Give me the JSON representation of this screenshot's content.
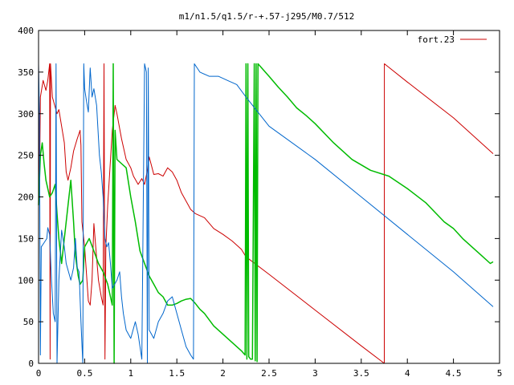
{
  "chart_data": {
    "type": "line",
    "title": "m1/n1.5/q1.5/r-+.57-j295/M0.7/512",
    "xlabel": "",
    "ylabel": "",
    "xlim": [
      0,
      5
    ],
    "ylim": [
      0,
      400
    ],
    "grid": false,
    "legend_position": "top-right",
    "xticks": [
      0,
      0.5,
      1,
      1.5,
      2,
      2.5,
      3,
      3.5,
      4,
      4.5,
      5
    ],
    "xtick_labels": [
      "0",
      "0.5",
      "1",
      "1.5",
      "2",
      "2.5",
      "3",
      "3.5",
      "4",
      "4.5",
      "5"
    ],
    "yticks": [
      0,
      50,
      100,
      150,
      200,
      250,
      300,
      350,
      400
    ],
    "ytick_labels": [
      "0",
      "50",
      "100",
      "150",
      "200",
      "250",
      "300",
      "350",
      "400"
    ],
    "series": [
      {
        "name": "fort.23",
        "color": "#cc0000",
        "show_in_legend": true,
        "points": [
          [
            0,
            358
          ],
          [
            0.01,
            200
          ],
          [
            0.02,
            320
          ],
          [
            0.05,
            340
          ],
          [
            0.08,
            328
          ],
          [
            0.1,
            340
          ],
          [
            0.12,
            360
          ],
          [
            0.125,
            5
          ],
          [
            0.13,
            360
          ],
          [
            0.15,
            320
          ],
          [
            0.2,
            300
          ],
          [
            0.22,
            305
          ],
          [
            0.25,
            285
          ],
          [
            0.28,
            265
          ],
          [
            0.3,
            230
          ],
          [
            0.32,
            220
          ],
          [
            0.35,
            235
          ],
          [
            0.38,
            255
          ],
          [
            0.42,
            270
          ],
          [
            0.45,
            280
          ],
          [
            0.46,
            262
          ],
          [
            0.47,
            170
          ],
          [
            0.5,
            140
          ],
          [
            0.54,
            75
          ],
          [
            0.56,
            70
          ],
          [
            0.58,
            100
          ],
          [
            0.6,
            168
          ],
          [
            0.62,
            140
          ],
          [
            0.65,
            100
          ],
          [
            0.68,
            80
          ],
          [
            0.7,
            70
          ],
          [
            0.71,
            360
          ],
          [
            0.72,
            5
          ],
          [
            0.73,
            140
          ],
          [
            0.75,
            190
          ],
          [
            0.8,
            280
          ],
          [
            0.83,
            310
          ],
          [
            0.85,
            300
          ],
          [
            0.9,
            270
          ],
          [
            0.95,
            245
          ],
          [
            1.0,
            235
          ],
          [
            1.03,
            225
          ],
          [
            1.08,
            215
          ],
          [
            1.12,
            222
          ],
          [
            1.15,
            215
          ],
          [
            1.18,
            232
          ],
          [
            1.2,
            248
          ],
          [
            1.25,
            227
          ],
          [
            1.3,
            228
          ],
          [
            1.35,
            225
          ],
          [
            1.4,
            235
          ],
          [
            1.45,
            230
          ],
          [
            1.5,
            220
          ],
          [
            1.55,
            205
          ],
          [
            1.6,
            195
          ],
          [
            1.65,
            185
          ],
          [
            1.7,
            180
          ],
          [
            1.8,
            175
          ],
          [
            1.9,
            162
          ],
          [
            2.0,
            155
          ],
          [
            2.1,
            147
          ],
          [
            2.2,
            137
          ],
          [
            2.25,
            128
          ],
          [
            2.5,
            107
          ],
          [
            3.0,
            64
          ],
          [
            3.5,
            21
          ],
          [
            3.75,
            0
          ],
          [
            3.751,
            360
          ],
          [
            4.0,
            338
          ],
          [
            4.5,
            295
          ],
          [
            4.93,
            252
          ]
        ]
      },
      {
        "name": "",
        "color": "#00bb00",
        "show_in_legend": false,
        "points": [
          [
            0,
            190
          ],
          [
            0.02,
            250
          ],
          [
            0.04,
            265
          ],
          [
            0.06,
            240
          ],
          [
            0.08,
            220
          ],
          [
            0.12,
            200
          ],
          [
            0.15,
            205
          ],
          [
            0.18,
            215
          ],
          [
            0.2,
            180
          ],
          [
            0.22,
            150
          ],
          [
            0.25,
            120
          ],
          [
            0.28,
            150
          ],
          [
            0.32,
            190
          ],
          [
            0.35,
            220
          ],
          [
            0.38,
            170
          ],
          [
            0.4,
            130
          ],
          [
            0.43,
            105
          ],
          [
            0.45,
            95
          ],
          [
            0.48,
            100
          ],
          [
            0.5,
            140
          ],
          [
            0.55,
            150
          ],
          [
            0.6,
            135
          ],
          [
            0.65,
            120
          ],
          [
            0.7,
            110
          ],
          [
            0.75,
            95
          ],
          [
            0.8,
            70
          ],
          [
            0.81,
            360
          ],
          [
            0.82,
            0
          ],
          [
            0.83,
            280
          ],
          [
            0.85,
            245
          ],
          [
            0.9,
            240
          ],
          [
            0.95,
            235
          ],
          [
            1.0,
            200
          ],
          [
            1.05,
            170
          ],
          [
            1.1,
            135
          ],
          [
            1.15,
            120
          ],
          [
            1.2,
            105
          ],
          [
            1.25,
            95
          ],
          [
            1.3,
            85
          ],
          [
            1.35,
            80
          ],
          [
            1.4,
            70
          ],
          [
            1.45,
            70
          ],
          [
            1.5,
            72
          ],
          [
            1.55,
            75
          ],
          [
            1.6,
            77
          ],
          [
            1.65,
            78
          ],
          [
            1.7,
            72
          ],
          [
            1.75,
            65
          ],
          [
            1.8,
            60
          ],
          [
            1.9,
            45
          ],
          [
            2.0,
            35
          ],
          [
            2.1,
            25
          ],
          [
            2.2,
            15
          ],
          [
            2.24,
            10
          ],
          [
            2.25,
            360
          ],
          [
            2.26,
            5
          ],
          [
            2.27,
            360
          ],
          [
            2.28,
            8
          ],
          [
            2.3,
            5
          ],
          [
            2.32,
            5
          ],
          [
            2.34,
            360
          ],
          [
            2.35,
            3
          ],
          [
            2.36,
            360
          ],
          [
            2.37,
            2
          ],
          [
            2.38,
            360
          ],
          [
            2.5,
            345
          ],
          [
            2.6,
            332
          ],
          [
            2.7,
            320
          ],
          [
            2.8,
            307
          ],
          [
            2.9,
            298
          ],
          [
            3.0,
            288
          ],
          [
            3.2,
            265
          ],
          [
            3.4,
            245
          ],
          [
            3.6,
            232
          ],
          [
            3.8,
            225
          ],
          [
            4.0,
            210
          ],
          [
            4.2,
            193
          ],
          [
            4.4,
            170
          ],
          [
            4.5,
            162
          ],
          [
            4.6,
            150
          ],
          [
            4.7,
            140
          ],
          [
            4.8,
            130
          ],
          [
            4.9,
            120
          ],
          [
            4.93,
            122
          ]
        ]
      },
      {
        "name": "",
        "color": "#0066cc",
        "show_in_legend": false,
        "points": [
          [
            0,
            360
          ],
          [
            0.01,
            300
          ],
          [
            0.02,
            10
          ],
          [
            0.03,
            140
          ],
          [
            0.06,
            145
          ],
          [
            0.09,
            150
          ],
          [
            0.1,
            163
          ],
          [
            0.12,
            155
          ],
          [
            0.14,
            100
          ],
          [
            0.16,
            60
          ],
          [
            0.18,
            50
          ],
          [
            0.19,
            360
          ],
          [
            0.2,
            0
          ],
          [
            0.22,
            100
          ],
          [
            0.25,
            160
          ],
          [
            0.28,
            140
          ],
          [
            0.3,
            120
          ],
          [
            0.35,
            100
          ],
          [
            0.38,
            115
          ],
          [
            0.4,
            150
          ],
          [
            0.42,
            115
          ],
          [
            0.44,
            110
          ],
          [
            0.46,
            50
          ],
          [
            0.48,
            0
          ],
          [
            0.49,
            360
          ],
          [
            0.5,
            330
          ],
          [
            0.52,
            315
          ],
          [
            0.54,
            302
          ],
          [
            0.56,
            355
          ],
          [
            0.58,
            320
          ],
          [
            0.6,
            330
          ],
          [
            0.63,
            310
          ],
          [
            0.66,
            250
          ],
          [
            0.68,
            230
          ],
          [
            0.7,
            200
          ],
          [
            0.72,
            150
          ],
          [
            0.74,
            140
          ],
          [
            0.76,
            145
          ],
          [
            0.78,
            120
          ],
          [
            0.8,
            90
          ],
          [
            0.85,
            100
          ],
          [
            0.88,
            110
          ],
          [
            0.9,
            80
          ],
          [
            0.92,
            60
          ],
          [
            0.95,
            40
          ],
          [
            1.0,
            30
          ],
          [
            1.05,
            50
          ],
          [
            1.08,
            35
          ],
          [
            1.1,
            20
          ],
          [
            1.12,
            5
          ],
          [
            1.15,
            360
          ],
          [
            1.17,
            350
          ],
          [
            1.18,
            0
          ],
          [
            1.19,
            355
          ],
          [
            1.2,
            40
          ],
          [
            1.25,
            30
          ],
          [
            1.3,
            50
          ],
          [
            1.35,
            60
          ],
          [
            1.4,
            75
          ],
          [
            1.45,
            80
          ],
          [
            1.5,
            60
          ],
          [
            1.55,
            40
          ],
          [
            1.6,
            20
          ],
          [
            1.65,
            10
          ],
          [
            1.68,
            5
          ],
          [
            1.69,
            360
          ],
          [
            1.75,
            350
          ],
          [
            1.85,
            345
          ],
          [
            1.95,
            345
          ],
          [
            2.05,
            340
          ],
          [
            2.15,
            335
          ],
          [
            2.25,
            320
          ],
          [
            2.5,
            285
          ],
          [
            3.0,
            245
          ],
          [
            3.5,
            200
          ],
          [
            4.0,
            155
          ],
          [
            4.5,
            110
          ],
          [
            4.93,
            68
          ]
        ]
      }
    ]
  }
}
